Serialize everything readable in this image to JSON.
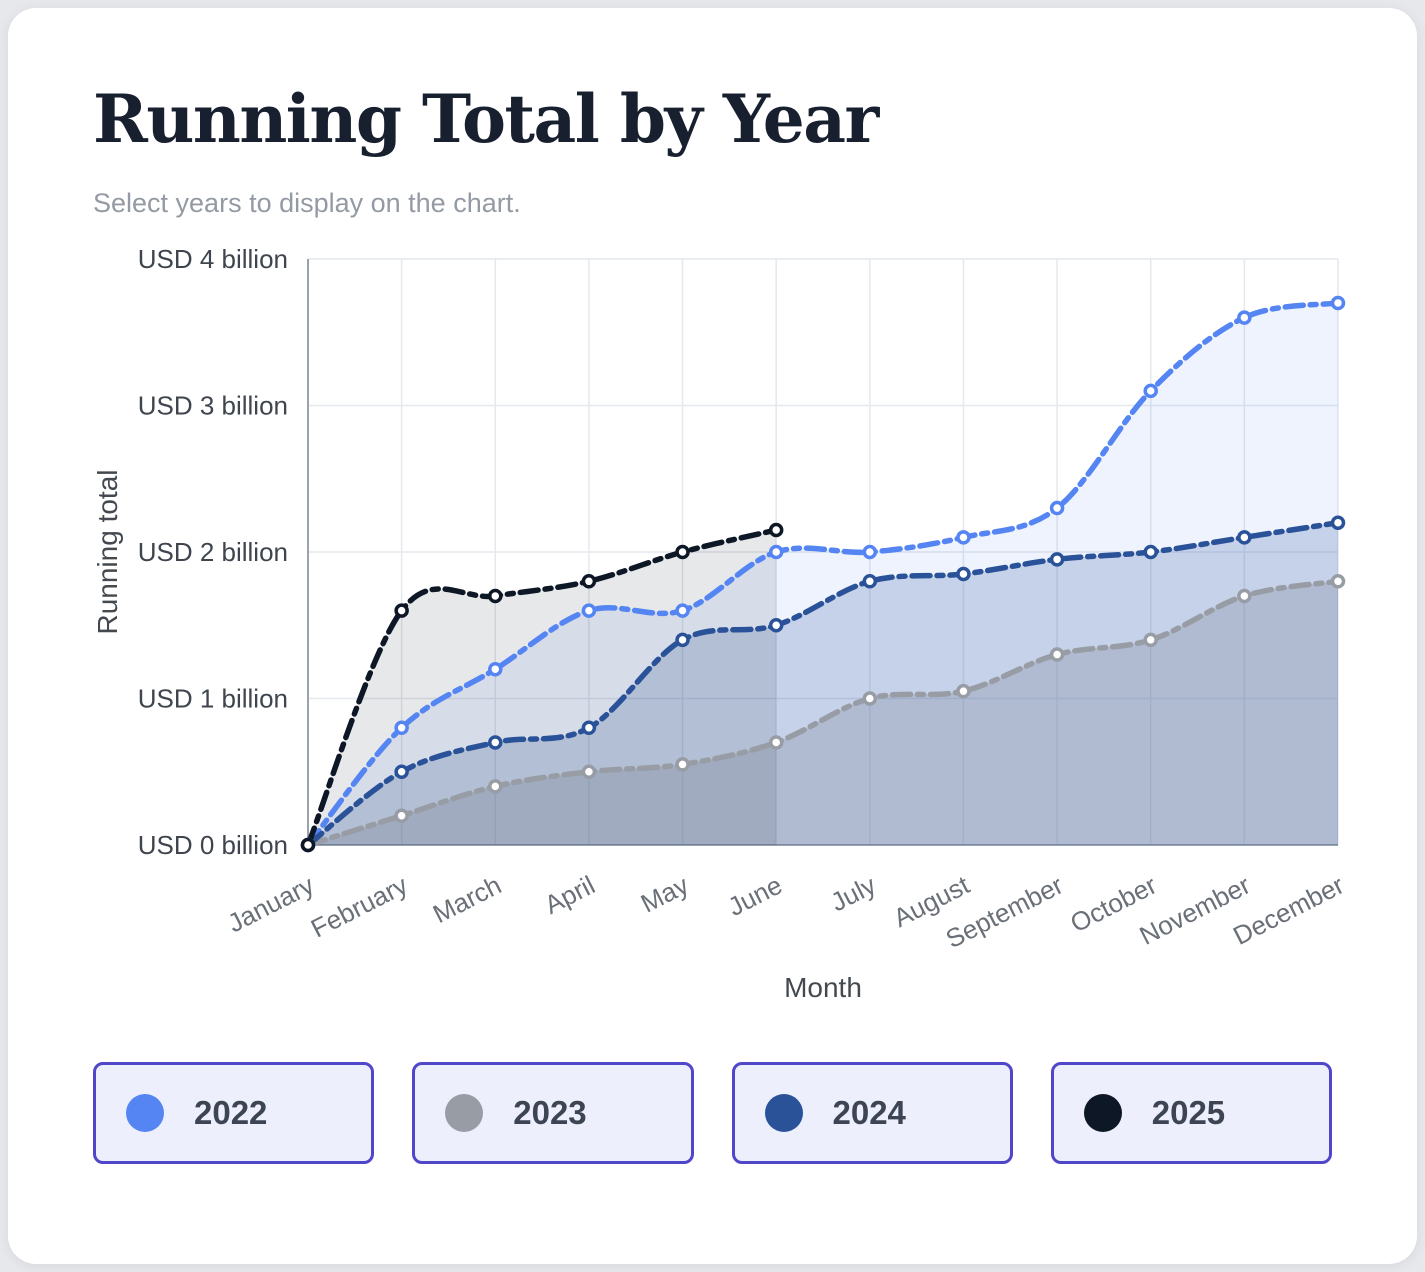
{
  "page": {
    "title": "Running Total by Year",
    "subtitle": "Select years to display on the chart."
  },
  "chart_data": {
    "type": "line",
    "title": "Running Total by Year",
    "xlabel": "Month",
    "ylabel": "Running total",
    "x": [
      "January",
      "February",
      "March",
      "April",
      "May",
      "June",
      "July",
      "August",
      "September",
      "October",
      "November",
      "December"
    ],
    "y_ticks": [
      "USD 0 billion",
      "USD 1 billion",
      "USD 2 billion",
      "USD 3 billion",
      "USD 4 billion"
    ],
    "ylim": [
      0,
      4
    ],
    "grid": true,
    "legend_position": "bottom",
    "series": [
      {
        "name": "2022",
        "color": "#5585f2",
        "fill": "rgba(88,133,242,0.10)",
        "values": [
          0,
          0.8,
          1.2,
          1.6,
          1.6,
          2.0,
          2.0,
          2.1,
          2.3,
          3.1,
          3.6,
          3.7
        ]
      },
      {
        "name": "2023",
        "color": "#989da5",
        "fill": "rgba(145,150,158,0.30)",
        "values": [
          0,
          0.2,
          0.4,
          0.5,
          0.55,
          0.7,
          1.0,
          1.05,
          1.3,
          1.4,
          1.7,
          1.8
        ]
      },
      {
        "name": "2024",
        "color": "#2a5298",
        "fill": "rgba(42,80,150,0.20)",
        "values": [
          0,
          0.5,
          0.7,
          0.8,
          1.4,
          1.5,
          1.8,
          1.85,
          1.95,
          2.0,
          2.1,
          2.2
        ]
      },
      {
        "name": "2025",
        "color": "#0e1726",
        "fill": "rgba(16,25,40,0.10)",
        "values": [
          0,
          1.6,
          1.7,
          1.8,
          2.0,
          2.15
        ]
      }
    ],
    "legend": [
      {
        "label": "2022",
        "color": "#5585f2"
      },
      {
        "label": "2023",
        "color": "#989da5"
      },
      {
        "label": "2024",
        "color": "#2a5298"
      },
      {
        "label": "2025",
        "color": "#0e1726"
      }
    ]
  },
  "axis_colors": {
    "axis_line": "#9aa2ad",
    "grid_line": "#e4e8ef",
    "tick_label": "#3f454e",
    "month_label": "#6a7078",
    "axis_title": "#43494f"
  }
}
